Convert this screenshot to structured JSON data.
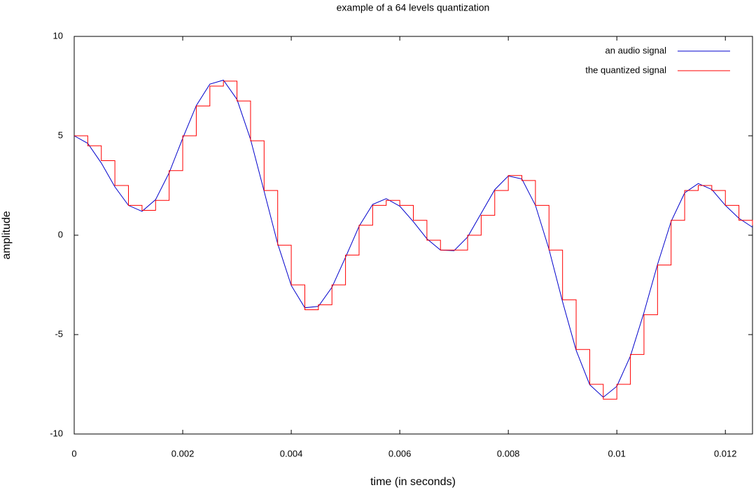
{
  "chart_data": {
    "type": "line",
    "title": "example of a 64 levels quantization",
    "x_label": "time (in seconds)",
    "y_label": "amplitude",
    "x": [
      0,
      0.00025,
      0.0005,
      0.00075,
      0.001,
      0.00125,
      0.0015,
      0.00175,
      0.002,
      0.00225,
      0.0025,
      0.00275,
      0.003,
      0.00325,
      0.0035,
      0.00375,
      0.004,
      0.00425,
      0.0045,
      0.00475,
      0.005,
      0.00525,
      0.0055,
      0.00575,
      0.006,
      0.00625,
      0.0065,
      0.00675,
      0.007,
      0.00725,
      0.0075,
      0.00775,
      0.008,
      0.00825,
      0.0085,
      0.00875,
      0.009,
      0.00925,
      0.0095,
      0.00975,
      0.01,
      0.01025,
      0.0105,
      0.01075,
      0.011,
      0.01125,
      0.0115,
      0.01175,
      0.012,
      0.01225,
      0.0125
    ],
    "series": [
      {
        "name": "an audio signal",
        "color": "#0000cc",
        "step": false,
        "values": [
          5,
          4.62,
          3.63,
          2.43,
          1.5,
          1.2,
          1.79,
          3.14,
          4.88,
          6.52,
          7.6,
          7.8,
          6.83,
          4.82,
          2.21,
          -0.43,
          -2.53,
          -3.65,
          -3.58,
          -2.62,
          -1.11,
          0.45,
          1.55,
          1.84,
          1.46,
          0.68,
          -0.18,
          -0.75,
          -0.78,
          -0.09,
          1.1,
          2.29,
          2.98,
          2.83,
          1.5,
          -0.71,
          -3.35,
          -5.79,
          -7.52,
          -8.15,
          -7.6,
          -6.08,
          -3.89,
          -1.47,
          0.69,
          2.13,
          2.6,
          2.3,
          1.5,
          0.85,
          0.4
        ]
      },
      {
        "name": "the quantized signal",
        "color": "#ff0000",
        "step": true,
        "values": [
          5,
          4.5,
          3.75,
          2.5,
          1.5,
          1.25,
          1.75,
          3.25,
          5,
          6.5,
          7.5,
          7.75,
          6.75,
          4.75,
          2.25,
          -0.5,
          -2.5,
          -3.75,
          -3.5,
          -2.5,
          -1,
          0.5,
          1.5,
          1.75,
          1.5,
          0.75,
          -0.25,
          -0.75,
          -0.75,
          0,
          1,
          2.25,
          3,
          2.75,
          1.5,
          -0.75,
          -3.25,
          -5.75,
          -7.5,
          -8.25,
          -7.5,
          -6,
          -4,
          -1.5,
          0.75,
          2.25,
          2.5,
          2.25,
          1.5,
          0.75,
          0.5
        ]
      }
    ],
    "xlim": [
      0,
      0.0125
    ],
    "ylim": [
      -10,
      10
    ],
    "xticks": [
      0,
      0.002,
      0.004,
      0.006,
      0.008,
      0.01,
      0.012
    ],
    "yticks": [
      -10,
      -5,
      0,
      5,
      10
    ],
    "grid": false,
    "legend": "top-right"
  }
}
